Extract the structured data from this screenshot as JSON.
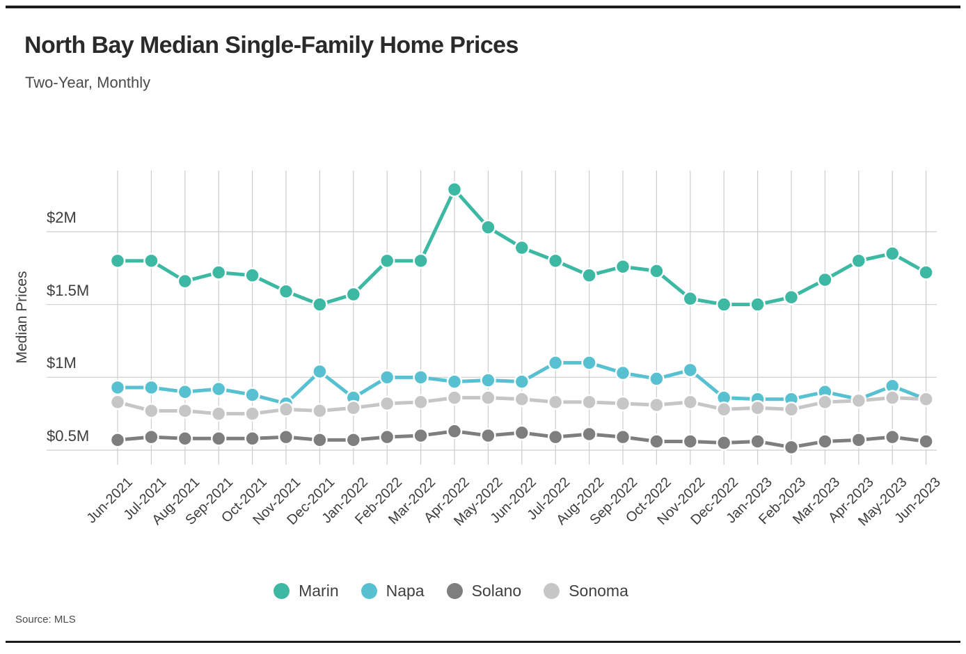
{
  "page": {
    "title": "North Bay Median Single-Family Home Prices",
    "subtitle": "Two-Year, Monthly",
    "source": "Source: MLS"
  },
  "chart_data": {
    "type": "line",
    "title": "North Bay Median Single-Family Home Prices",
    "subtitle": "Two-Year, Monthly",
    "xlabel": "",
    "ylabel": "Median Prices",
    "source": "Source: MLS",
    "units": "millions USD",
    "grid": "both",
    "legend_position": "bottom",
    "ylim": [
      0.4,
      2.42
    ],
    "x_labels": [
      "Jun-2021",
      "Jul-2021",
      "Aug-2021",
      "Sep-2021",
      "Oct-2021",
      "Nov-2021",
      "Dec-2021",
      "Jan-2022",
      "Feb-2022",
      "Mar-2022",
      "Apr-2022",
      "May-2022",
      "Jun-2022",
      "Jul-2022",
      "Aug-2022",
      "Sep-2022",
      "Oct-2022",
      "Nov-2022",
      "Dec-2022",
      "Jan-2023",
      "Feb-2023",
      "Mar-2023",
      "Apr-2023",
      "May-2023",
      "Jun-2023"
    ],
    "y_ticks": [
      {
        "label": "$0.5M",
        "value": 0.5
      },
      {
        "label": "$1M",
        "value": 1.0
      },
      {
        "label": "$1.5M",
        "value": 1.5
      },
      {
        "label": "$2M",
        "value": 2.0
      }
    ],
    "series": [
      {
        "name": "Marin",
        "color": "#3cb8a3",
        "values": [
          1.8,
          1.8,
          1.66,
          1.72,
          1.7,
          1.59,
          1.5,
          1.57,
          1.8,
          1.8,
          2.29,
          2.03,
          1.89,
          1.8,
          1.7,
          1.76,
          1.73,
          1.54,
          1.5,
          1.5,
          1.55,
          1.67,
          1.8,
          1.85,
          1.72
        ]
      },
      {
        "name": "Napa",
        "color": "#57c1d1",
        "values": [
          0.93,
          0.93,
          0.9,
          0.92,
          0.88,
          0.82,
          1.04,
          0.86,
          1.0,
          1.0,
          0.97,
          0.98,
          0.97,
          1.1,
          1.1,
          1.03,
          0.99,
          1.05,
          0.86,
          0.85,
          0.85,
          0.9,
          0.85,
          0.94,
          0.85
        ]
      },
      {
        "name": "Solano",
        "color": "#7e7e7e",
        "values": [
          0.57,
          0.59,
          0.58,
          0.58,
          0.58,
          0.59,
          0.57,
          0.57,
          0.59,
          0.6,
          0.63,
          0.6,
          0.62,
          0.59,
          0.61,
          0.59,
          0.56,
          0.56,
          0.55,
          0.56,
          0.52,
          0.56,
          0.57,
          0.59,
          0.56
        ]
      },
      {
        "name": "Sonoma",
        "color": "#c6c6c6",
        "values": [
          0.83,
          0.77,
          0.77,
          0.75,
          0.75,
          0.78,
          0.77,
          0.79,
          0.82,
          0.83,
          0.86,
          0.86,
          0.85,
          0.83,
          0.83,
          0.82,
          0.81,
          0.83,
          0.78,
          0.79,
          0.78,
          0.83,
          0.84,
          0.86,
          0.85
        ]
      }
    ],
    "style": {
      "grid_color": "#cdcdcd",
      "marker_radius": 10,
      "line_width": 5
    }
  }
}
